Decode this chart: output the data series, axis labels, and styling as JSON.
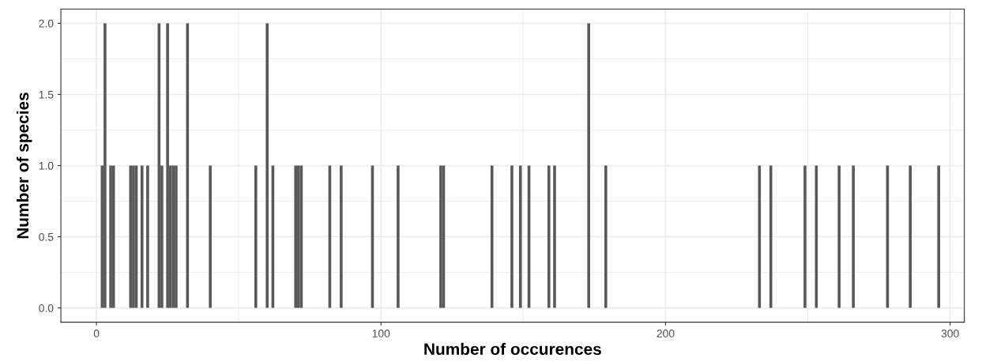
{
  "chart_data": {
    "type": "bar",
    "xlabel": "Number of occurences",
    "ylabel": "Number of species",
    "color": "#595959",
    "x": [
      2,
      3,
      5,
      6,
      12,
      13,
      14,
      16,
      18,
      22,
      23,
      25,
      26,
      27,
      28,
      32,
      40,
      56,
      60,
      62,
      70,
      71,
      72,
      82,
      86,
      97,
      106,
      121,
      122,
      139,
      146,
      149,
      152,
      159,
      161,
      173,
      179,
      233,
      237,
      249,
      253,
      261,
      266,
      278,
      286,
      296
    ],
    "values": [
      1,
      2,
      1,
      1,
      1,
      1,
      1,
      1,
      1,
      2,
      1,
      2,
      1,
      1,
      1,
      2,
      1,
      1,
      2,
      1,
      1,
      1,
      1,
      1,
      1,
      1,
      1,
      1,
      1,
      1,
      1,
      1,
      1,
      1,
      1,
      2,
      1,
      1,
      1,
      1,
      1,
      1,
      1,
      1,
      1,
      1
    ],
    "xlim": [
      -12.5,
      305
    ],
    "ylim": [
      -0.1,
      2.1
    ],
    "xticks": [
      0,
      100,
      200,
      300
    ],
    "yticks": [
      {
        "value": 0,
        "label": "0.0"
      },
      {
        "value": 0.5,
        "label": "0.5"
      },
      {
        "value": 1,
        "label": "1.0"
      },
      {
        "value": 1.5,
        "label": "1.5"
      },
      {
        "value": 2,
        "label": "2.0"
      }
    ],
    "grid": true
  }
}
